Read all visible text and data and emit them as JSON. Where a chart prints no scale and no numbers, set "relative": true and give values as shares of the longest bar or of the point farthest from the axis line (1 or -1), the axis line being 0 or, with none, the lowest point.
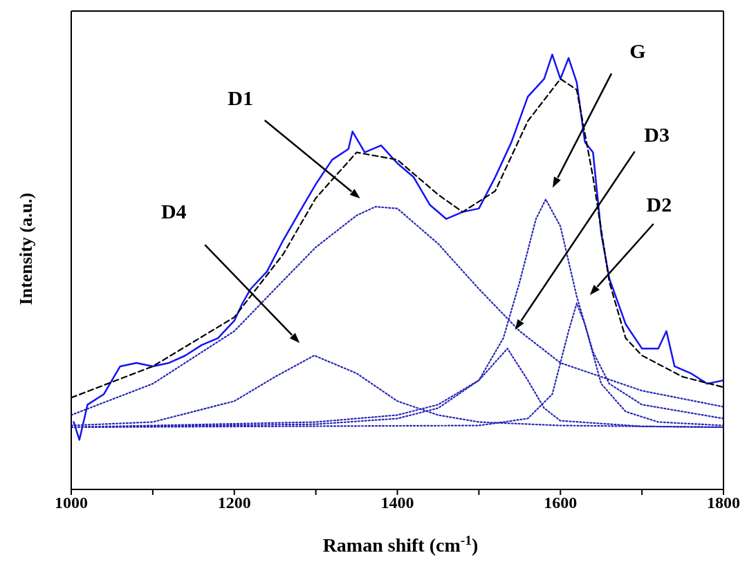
{
  "chart_data": {
    "type": "line",
    "relative": true,
    "xlabel": "Raman shift (cm$^{-1}$)",
    "ylabel": "Intensity (a.u.)",
    "xlim": [
      1000,
      1800
    ],
    "xticks": [
      1000,
      {
        "value": 1100,
        "label": null
      },
      1200,
      {
        "value": 1300,
        "label": null
      },
      1400,
      {
        "value": 1500,
        "label": null
      },
      1600,
      {
        "value": 1700,
        "label": null
      },
      1800
    ],
    "marker": "none",
    "series": [
      {
        "color": "#1414f5",
        "line_style": "solid",
        "x": [
          1003,
          1010,
          1020,
          1040,
          1060,
          1080,
          1100,
          1120,
          1140,
          1160,
          1180,
          1200,
          1210,
          1220,
          1240,
          1260,
          1280,
          1300,
          1320,
          1340,
          1345,
          1360,
          1380,
          1400,
          1420,
          1440,
          1460,
          1480,
          1500,
          1520,
          1540,
          1560,
          1580,
          1590,
          1600,
          1610,
          1620,
          1630,
          1640,
          1650,
          1660,
          1680,
          1700,
          1720,
          1730,
          1740,
          1760,
          1780,
          1800
        ],
        "values": [
          0.155,
          0.114,
          0.195,
          0.219,
          0.283,
          0.291,
          0.283,
          0.291,
          0.308,
          0.332,
          0.348,
          0.388,
          0.428,
          0.461,
          0.501,
          0.573,
          0.638,
          0.702,
          0.758,
          0.783,
          0.823,
          0.775,
          0.791,
          0.75,
          0.718,
          0.654,
          0.622,
          0.638,
          0.646,
          0.718,
          0.799,
          0.903,
          0.944,
          1,
          0.944,
          0.992,
          0.936,
          0.799,
          0.775,
          0.589,
          0.485,
          0.38,
          0.324,
          0.324,
          0.364,
          0.283,
          0.267,
          0.243,
          0.251
        ]
      },
      {
        "color": "#000000",
        "line_style": "dashed",
        "x": [
          1000,
          1100,
          1200,
          1260,
          1300,
          1350,
          1400,
          1450,
          1480,
          1520,
          1560,
          1600,
          1620,
          1640,
          1660,
          1680,
          1700,
          1750,
          1800
        ],
        "values": [
          0.211,
          0.283,
          0.396,
          0.541,
          0.67,
          0.775,
          0.758,
          0.678,
          0.638,
          0.686,
          0.847,
          0.944,
          0.919,
          0.718,
          0.477,
          0.348,
          0.308,
          0.259,
          0.235
        ]
      },
      {
        "color": "#2626b8",
        "line_style": "dotted",
        "x": [
          1000,
          1100,
          1200,
          1250,
          1300,
          1350,
          1373,
          1400,
          1450,
          1500,
          1550,
          1600,
          1700,
          1800
        ],
        "values": [
          0.171,
          0.243,
          0.364,
          0.461,
          0.557,
          0.63,
          0.65,
          0.646,
          0.565,
          0.461,
          0.364,
          0.291,
          0.227,
          0.19
        ]
      },
      {
        "color": "#2626b8",
        "line_style": "dotted",
        "x": [
          1000,
          1100,
          1200,
          1250,
          1298,
          1350,
          1400,
          1450,
          1500,
          1600,
          1800
        ],
        "values": [
          0.147,
          0.155,
          0.203,
          0.259,
          0.308,
          0.267,
          0.203,
          0.171,
          0.155,
          0.147,
          0.143
        ]
      },
      {
        "color": "#2626b8",
        "line_style": "dotted",
        "x": [
          1000,
          1300,
          1400,
          1450,
          1500,
          1530,
          1550,
          1570,
          1582,
          1600,
          1620,
          1640,
          1660,
          1700,
          1800
        ],
        "values": [
          0.143,
          0.155,
          0.171,
          0.195,
          0.251,
          0.348,
          0.477,
          0.622,
          0.667,
          0.605,
          0.444,
          0.316,
          0.243,
          0.195,
          0.163
        ]
      },
      {
        "color": "#2626b8",
        "line_style": "dotted",
        "x": [
          1000,
          1300,
          1400,
          1450,
          1500,
          1535,
          1560,
          1580,
          1600,
          1700,
          1800
        ],
        "values": [
          0.143,
          0.15,
          0.163,
          0.187,
          0.251,
          0.324,
          0.251,
          0.187,
          0.158,
          0.145,
          0.143
        ]
      },
      {
        "color": "#2626b8",
        "line_style": "dotted",
        "x": [
          1000,
          1500,
          1560,
          1590,
          1610,
          1620,
          1630,
          1650,
          1680,
          1720,
          1800
        ],
        "values": [
          0.143,
          0.147,
          0.163,
          0.219,
          0.364,
          0.428,
          0.38,
          0.243,
          0.179,
          0.155,
          0.147
        ]
      }
    ],
    "annotations": [
      "D1",
      "D4",
      "G",
      "D3",
      "D2"
    ]
  }
}
